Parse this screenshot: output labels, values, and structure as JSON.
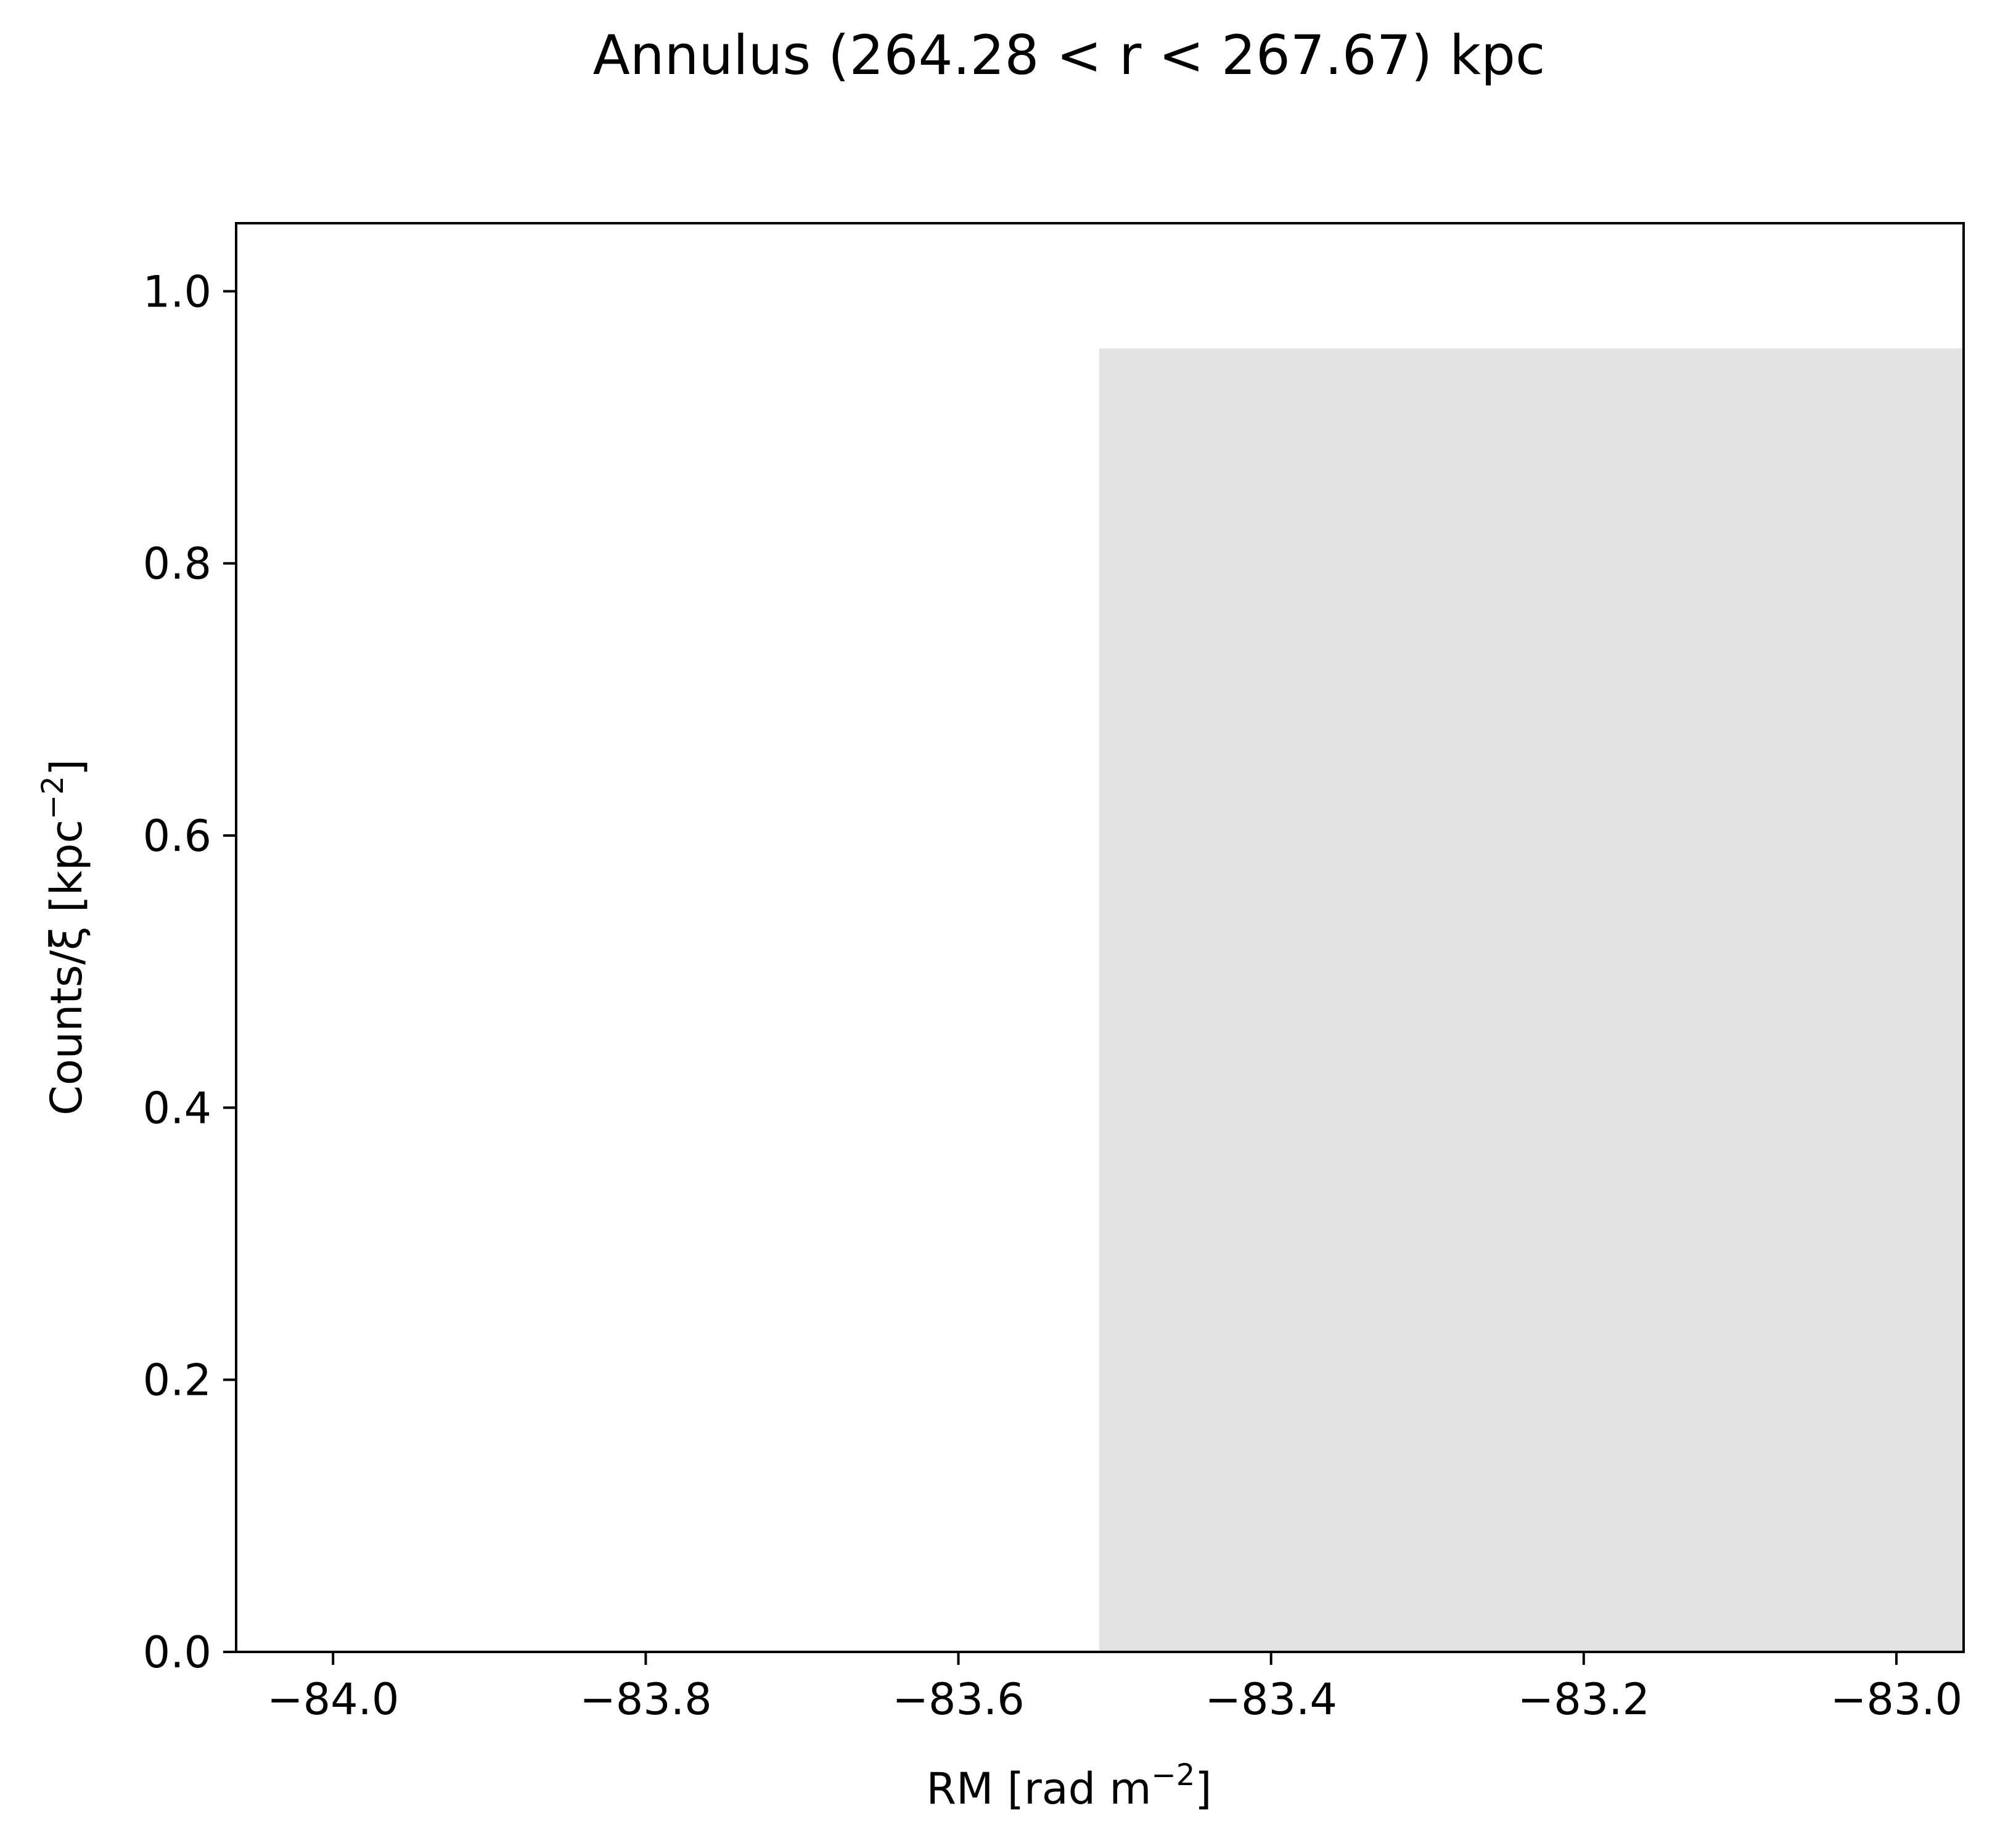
{
  "chart_data": {
    "type": "bar",
    "title": "Annulus (264.28 < r < 267.67) kpc",
    "xlabel": "RM [rad m",
    "xlabel_sup": "−2",
    "xlabel_end": "]",
    "ylabel": "Counts/ξ [kpc",
    "ylabel_sup": "−2",
    "ylabel_end": "]",
    "xlim": [
      -84.062,
      -82.957
    ],
    "ylim": [
      0,
      1.05
    ],
    "xticks": [
      -84.0,
      -83.8,
      -83.6,
      -83.4,
      -83.2,
      -83.0
    ],
    "xtick_labels": [
      "−84.0",
      "−83.8",
      "−83.6",
      "−83.4",
      "−83.2",
      "−83.0"
    ],
    "yticks": [
      0.0,
      0.2,
      0.4,
      0.6,
      0.8,
      1.0
    ],
    "ytick_labels": [
      "0.0",
      "0.2",
      "0.4",
      "0.6",
      "0.8",
      "1.0"
    ],
    "bars": [
      {
        "x_start": -83.51,
        "x_end": -82.957,
        "value": 0.958
      }
    ],
    "bar_color": "#e3e3e3",
    "grid": false
  }
}
